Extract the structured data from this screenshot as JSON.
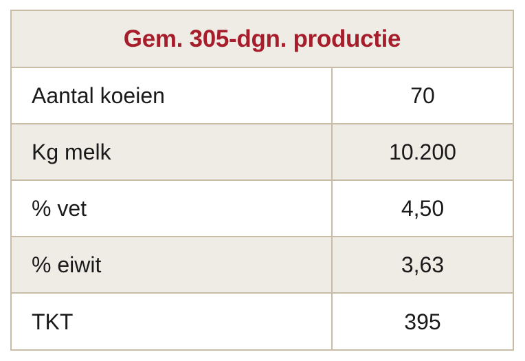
{
  "table": {
    "title": "Gem. 305-dgn. productie",
    "rows": [
      {
        "label": "Aantal koeien",
        "value": "70"
      },
      {
        "label": "Kg melk",
        "value": "10.200"
      },
      {
        "label": "% vet",
        "value": "4,50"
      },
      {
        "label": "% eiwit",
        "value": "3,63"
      },
      {
        "label": "TKT",
        "value": "395"
      }
    ]
  },
  "colors": {
    "title": "#a61e2c",
    "header_bg": "#efebe5",
    "border": "#c9bca6",
    "shaded_row_bg": "#efebe5"
  }
}
